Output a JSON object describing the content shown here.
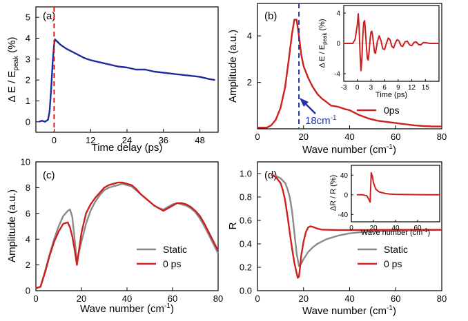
{
  "colors": {
    "blue": "#1f2a9c",
    "red": "#cc1f1f",
    "gray": "#8a8a8a",
    "annot_blue": "#2233aa"
  },
  "chart_data": [
    {
      "id": "a",
      "type": "line",
      "panel_label": "(a)",
      "xlabel": "Time delay (ps)",
      "ylabel": "Δ E / E",
      "ylabel_sub": "peak",
      "ylabel_unit": "(%)",
      "xlim": [
        -6,
        54
      ],
      "ylim": [
        -0.5,
        5.5
      ],
      "xticks": [
        0,
        12,
        24,
        36,
        48
      ],
      "yticks": [
        0,
        1,
        2,
        3,
        4,
        5
      ],
      "vline_x": 0,
      "series": [
        {
          "color": "blue",
          "x": [
            -5,
            -4,
            -3,
            -2,
            -1.5,
            -1,
            -0.5,
            0,
            0.3,
            0.6,
            1,
            2,
            3,
            4,
            6,
            8,
            10,
            12,
            15,
            18,
            21,
            24,
            27,
            30,
            33,
            36,
            39,
            42,
            45,
            48,
            51,
            53
          ],
          "y": [
            0.0,
            0.05,
            0.0,
            0.1,
            0.5,
            1.5,
            2.8,
            3.7,
            3.95,
            3.9,
            3.85,
            3.7,
            3.6,
            3.5,
            3.35,
            3.2,
            3.05,
            2.95,
            2.85,
            2.75,
            2.65,
            2.6,
            2.5,
            2.5,
            2.4,
            2.35,
            2.3,
            2.25,
            2.2,
            2.15,
            2.05,
            2.0
          ]
        }
      ]
    },
    {
      "id": "b",
      "type": "line",
      "panel_label": "(b)",
      "xlabel": "Wave number (cm",
      "xlabel_sup": "-1",
      "xlabel_end": ")",
      "ylabel": "Amplitude (a.u.)",
      "xlim": [
        0,
        80
      ],
      "ylim": [
        0,
        5.4
      ],
      "xticks": [
        0,
        20,
        40,
        60,
        80
      ],
      "yticks": [
        2,
        4
      ],
      "vline_x": 18,
      "annotation": "18cm",
      "annotation_sup": "-1",
      "legend": [
        "0ps"
      ],
      "series": [
        {
          "name": "0ps",
          "color": "red",
          "x": [
            0,
            2,
            4,
            6,
            8,
            10,
            12,
            14,
            15,
            16,
            17,
            18,
            19,
            20,
            22,
            24,
            26,
            28,
            30,
            32,
            35,
            38,
            40,
            44,
            48,
            52,
            56,
            60,
            64,
            68,
            72,
            76,
            80
          ],
          "y": [
            0.05,
            0.05,
            0.05,
            0.15,
            0.4,
            0.9,
            1.8,
            3.3,
            4.1,
            4.7,
            4.7,
            4.0,
            3.2,
            2.7,
            2.2,
            1.8,
            1.5,
            1.3,
            1.15,
            1.0,
            0.95,
            0.85,
            0.8,
            0.6,
            0.45,
            0.35,
            0.3,
            0.25,
            0.2,
            0.15,
            0.12,
            0.1,
            0.1
          ]
        }
      ],
      "inset": {
        "xlabel": "Time (ps)",
        "ylabel": "Δ E / E",
        "ylabel_sub": "peak",
        "ylabel_unit": "(%)",
        "xlim": [
          -3,
          18
        ],
        "ylim": [
          -5,
          5
        ],
        "xticks": [
          -3,
          0,
          3,
          6,
          9,
          12,
          15
        ],
        "yticks": [
          -4,
          0,
          4
        ],
        "series": {
          "color": "red",
          "x": [
            -3,
            -1,
            -0.5,
            0,
            0.2,
            0.4,
            0.6,
            0.8,
            1.0,
            1.2,
            1.4,
            1.6,
            1.8,
            2.0,
            2.2,
            2.4,
            2.6,
            2.8,
            3.0,
            3.2,
            3.4,
            3.6,
            3.8,
            4.0,
            4.4,
            4.8,
            5.2,
            5.6,
            6.0,
            6.4,
            6.8,
            7.2,
            7.6,
            8.0,
            8.4,
            8.8,
            9.2,
            9.6,
            10.0,
            10.5,
            11.0,
            11.5,
            12.0,
            12.5,
            13.0,
            13.5,
            14.0,
            14.5,
            15.0,
            16.0,
            17.0,
            18.0
          ],
          "y": [
            0,
            0,
            0.5,
            2.5,
            3.9,
            2.0,
            -1.5,
            -3.6,
            -2.0,
            1.0,
            2.8,
            3.0,
            1.5,
            -0.5,
            -2.0,
            -2.2,
            -1.0,
            0.5,
            1.5,
            1.6,
            0.8,
            -0.3,
            -1.2,
            -1.3,
            0.2,
            1.0,
            0.4,
            -0.7,
            -0.8,
            0.0,
            0.7,
            0.5,
            -0.4,
            -0.6,
            0.1,
            0.5,
            0.3,
            -0.3,
            -0.4,
            0.2,
            0.3,
            -0.2,
            -0.3,
            0.15,
            0.2,
            -0.15,
            -0.2,
            0.1,
            0.1,
            0,
            0,
            0
          ]
        }
      }
    },
    {
      "id": "c",
      "type": "line",
      "panel_label": "(c)",
      "xlabel": "Wave number (cm",
      "xlabel_sup": "-1",
      "xlabel_end": ")",
      "ylabel": "Amplitude (a.u.)",
      "xlim": [
        0,
        80
      ],
      "ylim": [
        0,
        10
      ],
      "xticks": [
        0,
        20,
        40,
        60,
        80
      ],
      "yticks": [
        0,
        2,
        4,
        6,
        8,
        10
      ],
      "legend": [
        "Static",
        "0 ps"
      ],
      "series": [
        {
          "name": "Static",
          "color": "gray",
          "x": [
            0,
            2,
            4,
            6,
            8,
            10,
            12,
            14,
            15,
            16,
            17,
            18,
            20,
            22,
            24,
            26,
            28,
            30,
            32,
            34,
            36,
            38,
            40,
            42,
            44,
            46,
            48,
            50,
            52,
            54,
            56,
            58,
            60,
            62,
            64,
            66,
            68,
            70,
            72,
            74,
            76,
            78,
            80
          ],
          "y": [
            0.2,
            0.3,
            1.5,
            2.8,
            4.0,
            5.0,
            5.8,
            6.2,
            6.3,
            5.7,
            4.0,
            2.3,
            3.8,
            5.2,
            6.2,
            6.9,
            7.4,
            7.8,
            8.0,
            8.1,
            8.2,
            8.3,
            8.2,
            8.1,
            7.8,
            7.5,
            7.2,
            6.9,
            6.6,
            6.4,
            6.3,
            6.5,
            6.7,
            6.8,
            6.7,
            6.6,
            6.4,
            6.1,
            5.6,
            5.0,
            4.3,
            3.6,
            2.9
          ]
        },
        {
          "name": "0 ps",
          "color": "red",
          "x": [
            0,
            2,
            4,
            6,
            8,
            10,
            12,
            14,
            15,
            16,
            17,
            18,
            20,
            22,
            24,
            26,
            28,
            30,
            32,
            34,
            36,
            38,
            40,
            42,
            44,
            46,
            48,
            50,
            52,
            54,
            56,
            58,
            60,
            62,
            64,
            66,
            68,
            70,
            72,
            74,
            76,
            78,
            80
          ],
          "y": [
            0.2,
            0.3,
            1.4,
            2.7,
            3.8,
            4.6,
            5.2,
            5.3,
            4.9,
            4.2,
            3.2,
            2.0,
            4.5,
            6.0,
            6.7,
            7.2,
            7.6,
            8.0,
            8.2,
            8.3,
            8.4,
            8.4,
            8.3,
            8.2,
            7.9,
            7.5,
            7.2,
            6.9,
            6.6,
            6.4,
            6.2,
            6.4,
            6.6,
            6.8,
            6.8,
            6.7,
            6.5,
            6.2,
            5.8,
            5.2,
            4.5,
            3.8,
            3.1
          ]
        }
      ]
    },
    {
      "id": "d",
      "type": "line",
      "panel_label": "(d)",
      "xlabel": "Wave number (cm",
      "xlabel_sup": "-1",
      "xlabel_end": ")",
      "ylabel": "R",
      "xlim": [
        0,
        80
      ],
      "ylim": [
        0,
        1.1
      ],
      "xticks": [
        0,
        20,
        40,
        60,
        80
      ],
      "yticks": [
        0.0,
        0.2,
        0.4,
        0.6,
        0.8,
        1.0
      ],
      "ytick_labels": [
        "0.0",
        "0.2",
        "0.4",
        "0.6",
        "0.8",
        "1.0"
      ],
      "legend": [
        "Static",
        "0 ps"
      ],
      "series": [
        {
          "name": "Static",
          "color": "gray",
          "x": [
            6,
            8,
            10,
            12,
            13,
            14,
            15,
            16,
            17,
            18,
            19,
            20,
            22,
            24,
            26,
            28,
            30,
            35,
            40,
            45,
            50,
            55,
            60,
            65,
            70,
            75,
            80
          ],
          "y": [
            0.99,
            0.98,
            0.96,
            0.92,
            0.87,
            0.8,
            0.68,
            0.5,
            0.32,
            0.21,
            0.23,
            0.27,
            0.33,
            0.37,
            0.4,
            0.42,
            0.44,
            0.47,
            0.49,
            0.5,
            0.505,
            0.51,
            0.512,
            0.514,
            0.516,
            0.518,
            0.52
          ]
        },
        {
          "name": "0 ps",
          "color": "red",
          "x": [
            6,
            8,
            10,
            11,
            12,
            13,
            14,
            15,
            16,
            17,
            17.5,
            18,
            18.5,
            19,
            20,
            21,
            22,
            23,
            24,
            26,
            28,
            30,
            35,
            40,
            50,
            60,
            70,
            80
          ],
          "y": [
            0.99,
            0.97,
            0.92,
            0.86,
            0.77,
            0.64,
            0.5,
            0.36,
            0.24,
            0.15,
            0.11,
            0.12,
            0.2,
            0.3,
            0.42,
            0.5,
            0.54,
            0.55,
            0.545,
            0.53,
            0.522,
            0.52,
            0.518,
            0.518,
            0.519,
            0.52,
            0.52,
            0.52
          ]
        }
      ],
      "inset": {
        "xlabel": "Wave number (cm",
        "xlabel_sup": "-1",
        "xlabel_end": ")",
        "ylabel": "ΔR / R",
        "ylabel_unit": "(%)",
        "xlim": [
          0,
          80
        ],
        "ylim": [
          -55,
          60
        ],
        "xticks": [
          0,
          20,
          40,
          60
        ],
        "yticks": [
          -40,
          0,
          40
        ],
        "series": {
          "color": "red",
          "x": [
            5,
            10,
            14,
            16,
            17,
            18,
            19,
            20,
            22,
            25,
            30,
            35,
            40,
            50,
            60,
            70,
            80
          ],
          "y": [
            0,
            0,
            -2,
            -10,
            -15,
            45,
            38,
            25,
            12,
            6,
            3,
            1.5,
            1,
            0.5,
            0.2,
            0,
            0
          ]
        }
      }
    }
  ]
}
